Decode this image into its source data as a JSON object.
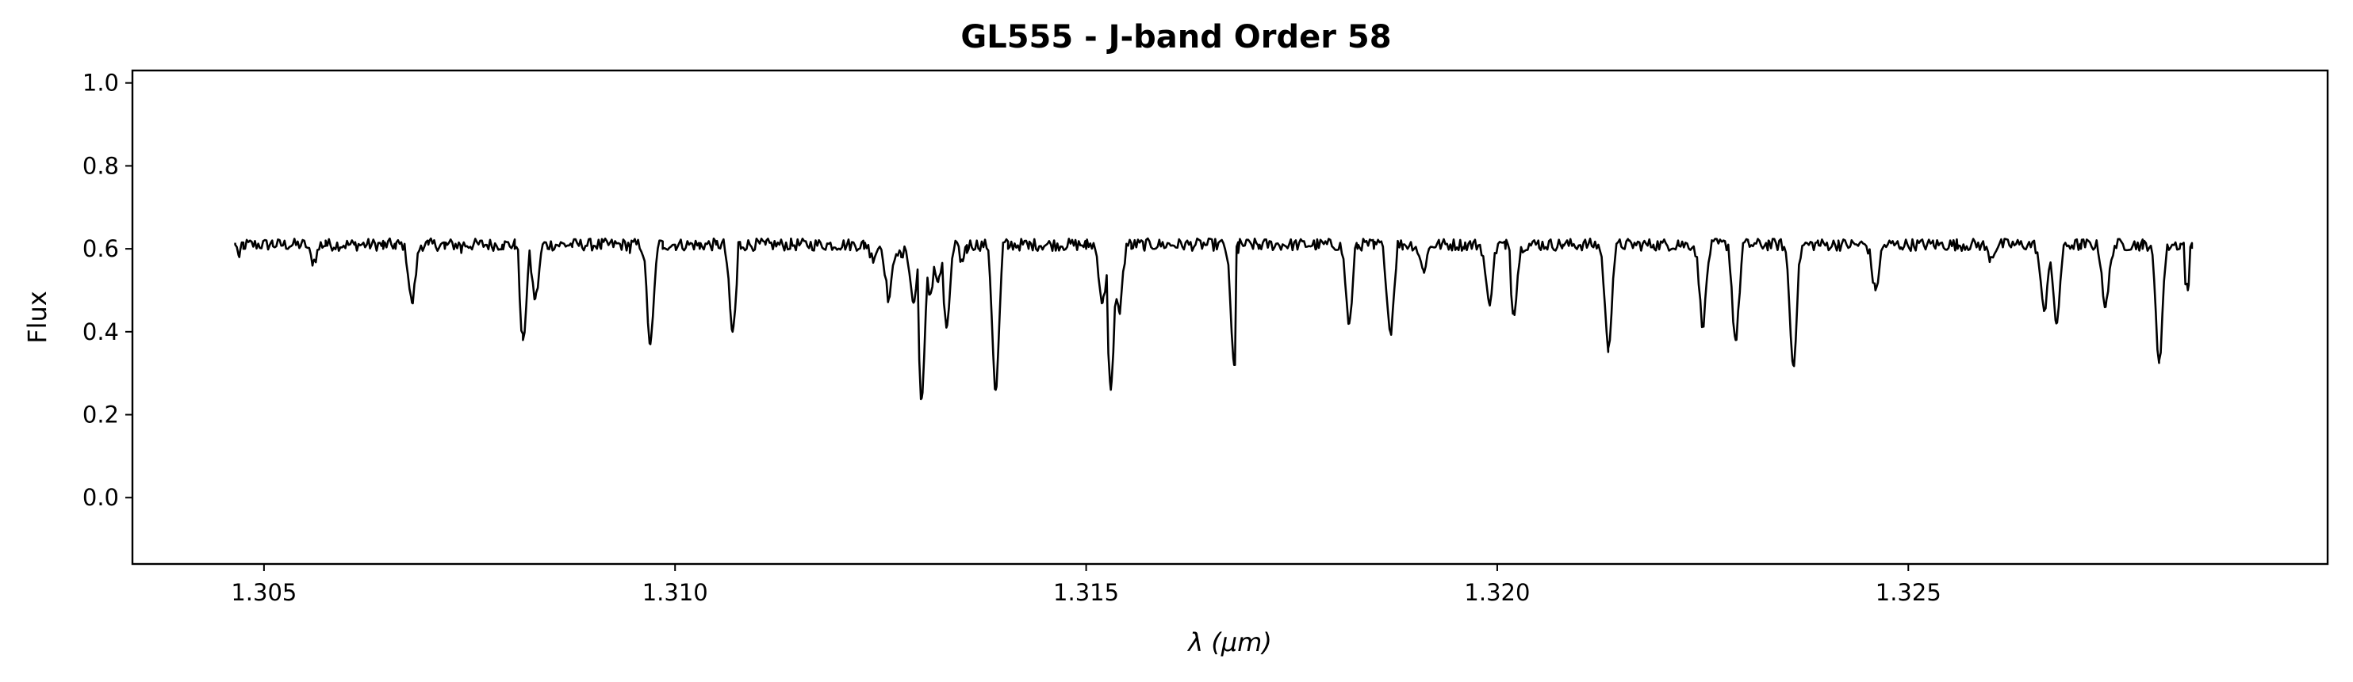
{
  "chart_data": {
    "type": "line",
    "title": "GL555 - J-band Order 58",
    "xlabel": "λ (μm)",
    "ylabel": "Flux",
    "xlim": [
      1.3034,
      1.3301
    ],
    "ylim": [
      -0.16,
      1.03
    ],
    "xticks": [
      1.305,
      1.31,
      1.315,
      1.32,
      1.325
    ],
    "xtick_labels": [
      "1.305",
      "1.310",
      "1.315",
      "1.320",
      "1.325"
    ],
    "yticks": [
      0.0,
      0.2,
      0.4,
      0.6,
      0.8,
      1.0
    ],
    "ytick_labels": [
      "0.0",
      "0.2",
      "0.4",
      "0.6",
      "0.8",
      "1.0"
    ],
    "grid": false,
    "series": [
      {
        "color": "#000000",
        "continuum": 0.61,
        "x_start": 1.30465,
        "x_end": 1.32845,
        "x": [
          1.30465,
          1.3047,
          1.30475,
          1.3051,
          1.30545,
          1.3056,
          1.30575,
          1.3061,
          1.30645,
          1.3066,
          1.3068,
          1.307,
          1.3072,
          1.3074,
          1.30765,
          1.3079,
          1.30805,
          1.30815,
          1.3083,
          1.30845,
          1.30875,
          1.3091,
          1.30945,
          1.3097,
          1.30985,
          1.31,
          1.3103,
          1.3105,
          1.3107,
          1.3108,
          1.3111,
          1.3114,
          1.3117,
          1.312,
          1.3123,
          1.3124,
          1.3126,
          1.31275,
          1.3129,
          1.313,
          1.3131,
          1.3132,
          1.3133,
          1.3135,
          1.31355,
          1.3137,
          1.3139,
          1.31405,
          1.3143,
          1.3146,
          1.315,
          1.3152,
          1.3153,
          1.3154,
          1.31555,
          1.3157,
          1.3159,
          1.3164,
          1.3168,
          1.31685,
          1.3171,
          1.3175,
          1.3178,
          1.3182,
          1.3183,
          1.3185,
          1.3187,
          1.31885,
          1.3191,
          1.3193,
          1.3196,
          1.3199,
          1.3201,
          1.3202,
          1.3205,
          1.3208,
          1.32135,
          1.3216,
          1.3219,
          1.3222,
          1.3225,
          1.32275,
          1.3229,
          1.32305,
          1.3233,
          1.3236,
          1.3239,
          1.324,
          1.32415,
          1.3243,
          1.3246,
          1.3249,
          1.3253,
          1.3256,
          1.326,
          1.3263,
          1.32665,
          1.3268,
          1.3271,
          1.3274,
          1.32785,
          1.32805,
          1.3283,
          1.3284,
          1.32845
        ],
        "y": [
          0.61,
          0.58,
          0.6,
          0.62,
          0.61,
          0.57,
          0.62,
          0.61,
          0.6,
          0.6,
          0.47,
          0.61,
          0.6,
          0.59,
          0.62,
          0.61,
          0.6,
          0.38,
          0.48,
          0.6,
          0.61,
          0.6,
          0.59,
          0.37,
          0.6,
          0.61,
          0.6,
          0.61,
          0.4,
          0.6,
          0.61,
          0.6,
          0.61,
          0.6,
          0.6,
          0.58,
          0.48,
          0.58,
          0.47,
          0.24,
          0.49,
          0.52,
          0.41,
          0.57,
          0.59,
          0.6,
          0.26,
          0.6,
          0.6,
          0.61,
          0.6,
          0.47,
          0.26,
          0.45,
          0.6,
          0.6,
          0.61,
          0.61,
          0.32,
          0.59,
          0.6,
          0.61,
          0.6,
          0.42,
          0.6,
          0.6,
          0.4,
          0.61,
          0.55,
          0.61,
          0.6,
          0.47,
          0.6,
          0.45,
          0.62,
          0.61,
          0.36,
          0.62,
          0.61,
          0.62,
          0.42,
          0.62,
          0.38,
          0.62,
          0.62,
          0.32,
          0.62,
          0.61,
          0.62,
          0.61,
          0.5,
          0.6,
          0.62,
          0.6,
          0.58,
          0.61,
          0.45,
          0.42,
          0.6,
          0.46,
          0.6,
          0.33,
          0.6,
          0.5,
          0.6
        ]
      }
    ]
  }
}
